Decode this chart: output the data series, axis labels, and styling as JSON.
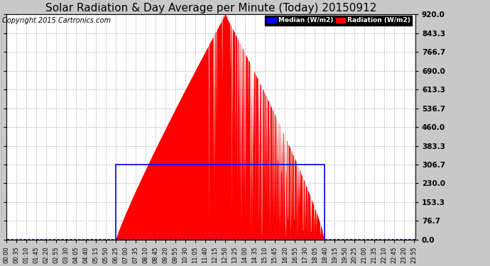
{
  "title": "Solar Radiation & Day Average per Minute (Today) 20150912",
  "copyright": "Copyright 2015 Cartronics.com",
  "yticks": [
    0.0,
    76.7,
    153.3,
    230.0,
    306.7,
    383.3,
    460.0,
    536.7,
    613.3,
    690.0,
    766.7,
    843.3,
    920.0
  ],
  "ymax": 920.0,
  "ymin": 0.0,
  "background_color": "#c8c8c8",
  "plot_bg_color": "#ffffff",
  "grid_color": "#aaaaaa",
  "radiation_color": "#ff0000",
  "median_color": "#0000ff",
  "legend_median_bg": "#0000ff",
  "legend_radiation_bg": "#ff0000",
  "title_fontsize": 11,
  "copyright_fontsize": 7,
  "tick_fontsize": 6,
  "ytick_fontsize": 7.5,
  "n_minutes": 1440,
  "sunrise_idx": 385,
  "sunset_idx": 1120,
  "peak_idx": 770,
  "peak_value": 920.0,
  "median_value": 306.7,
  "x_tick_interval": 35
}
